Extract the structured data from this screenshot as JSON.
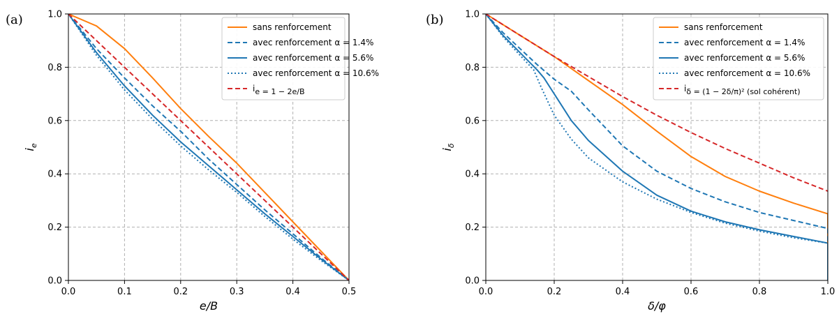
{
  "chart_data": [
    {
      "type": "line",
      "panel_label": "(a)",
      "xlabel": "e/B",
      "ylabel": "i_e",
      "xlim": [
        0,
        0.5
      ],
      "ylim": [
        0,
        1.0
      ],
      "xticks": [
        "0.0",
        "0.1",
        "0.2",
        "0.3",
        "0.4",
        "0.5"
      ],
      "yticks": [
        "0.0",
        "0.2",
        "0.4",
        "0.6",
        "0.8",
        "1.0"
      ],
      "grid": true,
      "legend_position": "top-right",
      "series": [
        {
          "name": "sans renforcement",
          "color": "#ff7f0e",
          "style": "solid",
          "x": [
            0,
            0.05,
            0.1,
            0.15,
            0.2,
            0.25,
            0.3,
            0.35,
            0.4,
            0.45,
            0.5
          ],
          "y": [
            1.0,
            0.955,
            0.87,
            0.76,
            0.645,
            0.54,
            0.44,
            0.33,
            0.22,
            0.11,
            0.0
          ]
        },
        {
          "name": "avec renforcement α = 1.4%",
          "color": "#1f77b4",
          "style": "dashed",
          "x": [
            0,
            0.05,
            0.1,
            0.15,
            0.2,
            0.25,
            0.3,
            0.35,
            0.4,
            0.45,
            0.5
          ],
          "y": [
            1.0,
            0.87,
            0.76,
            0.655,
            0.56,
            0.455,
            0.36,
            0.265,
            0.175,
            0.085,
            0.0
          ]
        },
        {
          "name": "avec renforcement α = 5.6%",
          "color": "#1f77b4",
          "style": "solid",
          "x": [
            0,
            0.05,
            0.1,
            0.15,
            0.2,
            0.25,
            0.3,
            0.35,
            0.4,
            0.45,
            0.5
          ],
          "y": [
            1.0,
            0.855,
            0.73,
            0.62,
            0.52,
            0.43,
            0.34,
            0.25,
            0.165,
            0.08,
            0.0
          ]
        },
        {
          "name": "avec renforcement α = 10.6%",
          "color": "#1f77b4",
          "style": "dotted",
          "x": [
            0,
            0.05,
            0.1,
            0.15,
            0.2,
            0.25,
            0.3,
            0.35,
            0.4,
            0.45,
            0.5
          ],
          "y": [
            1.0,
            0.845,
            0.715,
            0.605,
            0.505,
            0.415,
            0.33,
            0.24,
            0.155,
            0.075,
            0.0
          ]
        },
        {
          "name": "i_e = 1 − 2e/B",
          "color": "#d62728",
          "style": "dashed",
          "x": [
            0,
            0.5
          ],
          "y": [
            1.0,
            0.0
          ]
        }
      ]
    },
    {
      "type": "line",
      "panel_label": "(b)",
      "xlabel": "δ/φ",
      "ylabel": "i_δ",
      "xlim": [
        0,
        1.0
      ],
      "ylim": [
        0,
        1.0
      ],
      "xticks": [
        "0.0",
        "0.2",
        "0.4",
        "0.6",
        "0.8",
        "1.0"
      ],
      "yticks": [
        "0.0",
        "0.2",
        "0.4",
        "0.6",
        "0.8",
        "1.0"
      ],
      "grid": true,
      "legend_position": "top-right",
      "series": [
        {
          "name": "sans renforcement",
          "color": "#ff7f0e",
          "style": "solid",
          "x": [
            0,
            0.1,
            0.2,
            0.3,
            0.4,
            0.5,
            0.6,
            0.7,
            0.8,
            0.9,
            1.0
          ],
          "y": [
            1.0,
            0.92,
            0.84,
            0.75,
            0.66,
            0.56,
            0.465,
            0.39,
            0.335,
            0.29,
            0.25
          ]
        },
        {
          "name": "avec renforcement α = 1.4%",
          "color": "#1f77b4",
          "style": "dashed",
          "x": [
            0,
            0.05,
            0.1,
            0.15,
            0.2,
            0.25,
            0.3,
            0.4,
            0.5,
            0.6,
            0.7,
            0.8,
            0.9,
            1.0
          ],
          "y": [
            1.0,
            0.93,
            0.87,
            0.81,
            0.755,
            0.71,
            0.64,
            0.505,
            0.41,
            0.345,
            0.295,
            0.255,
            0.225,
            0.195
          ]
        },
        {
          "name": "avec renforcement α = 5.6%",
          "color": "#1f77b4",
          "style": "solid",
          "x": [
            0,
            0.05,
            0.1,
            0.15,
            0.17,
            0.2,
            0.25,
            0.3,
            0.4,
            0.5,
            0.6,
            0.7,
            0.8,
            0.9,
            1.0
          ],
          "y": [
            1.0,
            0.92,
            0.855,
            0.79,
            0.76,
            0.7,
            0.6,
            0.525,
            0.41,
            0.32,
            0.26,
            0.22,
            0.19,
            0.165,
            0.14
          ]
        },
        {
          "name": "avec renforcement α = 10.6%",
          "color": "#1f77b4",
          "style": "dotted",
          "x": [
            0,
            0.05,
            0.1,
            0.14,
            0.16,
            0.2,
            0.25,
            0.3,
            0.4,
            0.5,
            0.6,
            0.7,
            0.8,
            0.9,
            1.0
          ],
          "y": [
            1.0,
            0.915,
            0.845,
            0.79,
            0.73,
            0.62,
            0.53,
            0.46,
            0.37,
            0.305,
            0.255,
            0.215,
            0.185,
            0.16,
            0.14
          ]
        },
        {
          "name": "i_δ = (1 − 2δ/π)² (sol cohérent)",
          "color": "#d62728",
          "style": "dashed",
          "x": [
            0,
            0.1,
            0.2,
            0.3,
            0.4,
            0.5,
            0.6,
            0.7,
            0.8,
            0.9,
            1.0
          ],
          "y": [
            1.0,
            0.92,
            0.84,
            0.765,
            0.69,
            0.62,
            0.555,
            0.495,
            0.44,
            0.385,
            0.335
          ]
        }
      ]
    }
  ]
}
